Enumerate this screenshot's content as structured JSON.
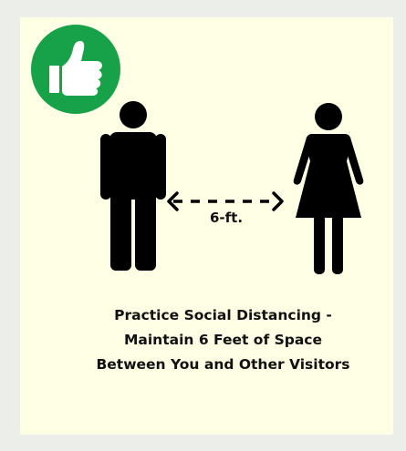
{
  "distance_label": "6-ft.",
  "message_lines": [
    "Practice Social Distancing -",
    "Maintain 6 Feet of Space",
    "Between You and Other Visitors"
  ],
  "icons": [
    "thumbs-up-icon",
    "man-icon",
    "woman-icon",
    "double-arrow-icon"
  ],
  "colors": {
    "page_background": "#eceee9",
    "poster_background": "#ffffe6",
    "badge_green": "#17a24a",
    "figure_black": "#000000"
  }
}
